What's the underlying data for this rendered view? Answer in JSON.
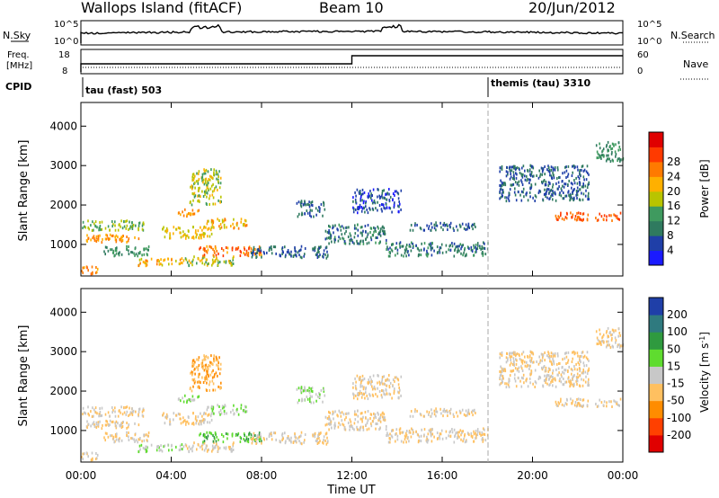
{
  "header": {
    "site": "Wallops Island (fitACF)",
    "beam": "Beam 10",
    "date": "20/Jun/2012"
  },
  "colors": {
    "power": [
      "#1a1aff",
      "#1f3fa8",
      "#2f7a5f",
      "#3f9a5f",
      "#b9c400",
      "#ffb000",
      "#ff7a00",
      "#ff3a00",
      "#e00000"
    ],
    "velocity": [
      "#e00000",
      "#ff4000",
      "#ff8c00",
      "#ffc060",
      "#c8c8c8",
      "#5fdc2f",
      "#2f9a3f",
      "#2f7a7f",
      "#1f3fa8"
    ]
  },
  "panels": {
    "nsky_label": "N.Sky",
    "nsearch_label": "N.Search",
    "nsky_ticks": [
      "10^5",
      "10^0"
    ],
    "nsearch_ticks": [
      "10^5",
      "10^0"
    ],
    "freq_label_line1": "Freq.",
    "freq_label_line2": "[MHz]",
    "freq_ticks": [
      "18",
      "8"
    ],
    "nave_label": "Nave",
    "nave_ticks": [
      "60",
      "0"
    ],
    "cpid_label": "CPID",
    "cpid_modes": [
      {
        "label": "tau (fast) 503",
        "start_hour": 0
      },
      {
        "label": "themis (tau) 3310",
        "start_hour": 18
      }
    ]
  },
  "axes": {
    "ylabel": "Slant Range [km]",
    "xlabel": "Time UT",
    "yticks": [
      1000,
      2000,
      3000,
      4000
    ],
    "ylim": [
      200,
      4600
    ],
    "xticks": [
      "00:00",
      "04:00",
      "08:00",
      "12:00",
      "16:00",
      "20:00",
      "00:00"
    ],
    "xlim_hours": [
      0,
      24
    ]
  },
  "power_scale": {
    "label": "Power [dB]",
    "ticks": [
      4,
      8,
      12,
      16,
      20,
      24,
      28
    ]
  },
  "velocity_scale": {
    "label": "Velocity [m s",
    "label_sup": "-1",
    "label_close": "]",
    "ticks": [
      200,
      100,
      50,
      15,
      -15,
      -50,
      -100,
      -200
    ]
  },
  "chart_data": {
    "type": "heatmap",
    "x_unit": "hours UT",
    "y_unit": "km",
    "frequency_switch_hour": 12,
    "echo_regions": [
      {
        "t": [
          0.0,
          2.6
        ],
        "r": [
          1050,
          1250
        ],
        "power": 26,
        "velocity": -15
      },
      {
        "t": [
          0.0,
          2.8
        ],
        "r": [
          1350,
          1600
        ],
        "power": 18,
        "velocity": -15
      },
      {
        "t": [
          0.0,
          0.8
        ],
        "r": [
          250,
          450
        ],
        "power": 28,
        "velocity": -15
      },
      {
        "t": [
          1.0,
          3.0
        ],
        "r": [
          700,
          950
        ],
        "power": 14,
        "velocity": -15
      },
      {
        "t": [
          2.5,
          4.5
        ],
        "r": [
          450,
          650
        ],
        "power": 24,
        "velocity": 15
      },
      {
        "t": [
          4.5,
          6.8
        ],
        "r": [
          450,
          700
        ],
        "power": 20,
        "velocity": -15
      },
      {
        "t": [
          3.5,
          5.8
        ],
        "r": [
          1150,
          1450
        ],
        "power": 22,
        "velocity": -15
      },
      {
        "t": [
          4.2,
          5.2
        ],
        "r": [
          1700,
          1900
        ],
        "power": 26,
        "velocity": 15
      },
      {
        "t": [
          5.5,
          7.4
        ],
        "r": [
          1400,
          1650
        ],
        "power": 24,
        "velocity": 15
      },
      {
        "t": [
          4.8,
          6.2
        ],
        "r": [
          2000,
          2900
        ],
        "power": 20,
        "velocity": -50
      },
      {
        "t": [
          5.2,
          8.0
        ],
        "r": [
          700,
          950
        ],
        "power": 28,
        "velocity": 50
      },
      {
        "t": [
          7.5,
          11.0
        ],
        "r": [
          650,
          950
        ],
        "power": 10,
        "velocity": -15
      },
      {
        "t": [
          9.5,
          10.8
        ],
        "r": [
          1700,
          2100
        ],
        "power": 10,
        "velocity": 15
      },
      {
        "t": [
          10.8,
          13.5
        ],
        "r": [
          1000,
          1500
        ],
        "power": 12,
        "velocity": -15
      },
      {
        "t": [
          12.0,
          14.2
        ],
        "r": [
          1800,
          2400
        ],
        "power": 8,
        "velocity": -15
      },
      {
        "t": [
          13.5,
          18.0
        ],
        "r": [
          700,
          1050
        ],
        "power": 12,
        "velocity": -15
      },
      {
        "t": [
          14.5,
          17.5
        ],
        "r": [
          1350,
          1550
        ],
        "power": 10,
        "velocity": -15
      },
      {
        "t": [
          18.5,
          22.5
        ],
        "r": [
          2100,
          3000
        ],
        "power": 10,
        "velocity": -15
      },
      {
        "t": [
          21.0,
          24.0
        ],
        "r": [
          1600,
          1800
        ],
        "power": 30,
        "velocity": -15
      },
      {
        "t": [
          22.8,
          24.0
        ],
        "r": [
          3100,
          3600
        ],
        "power": 14,
        "velocity": -15
      }
    ]
  }
}
